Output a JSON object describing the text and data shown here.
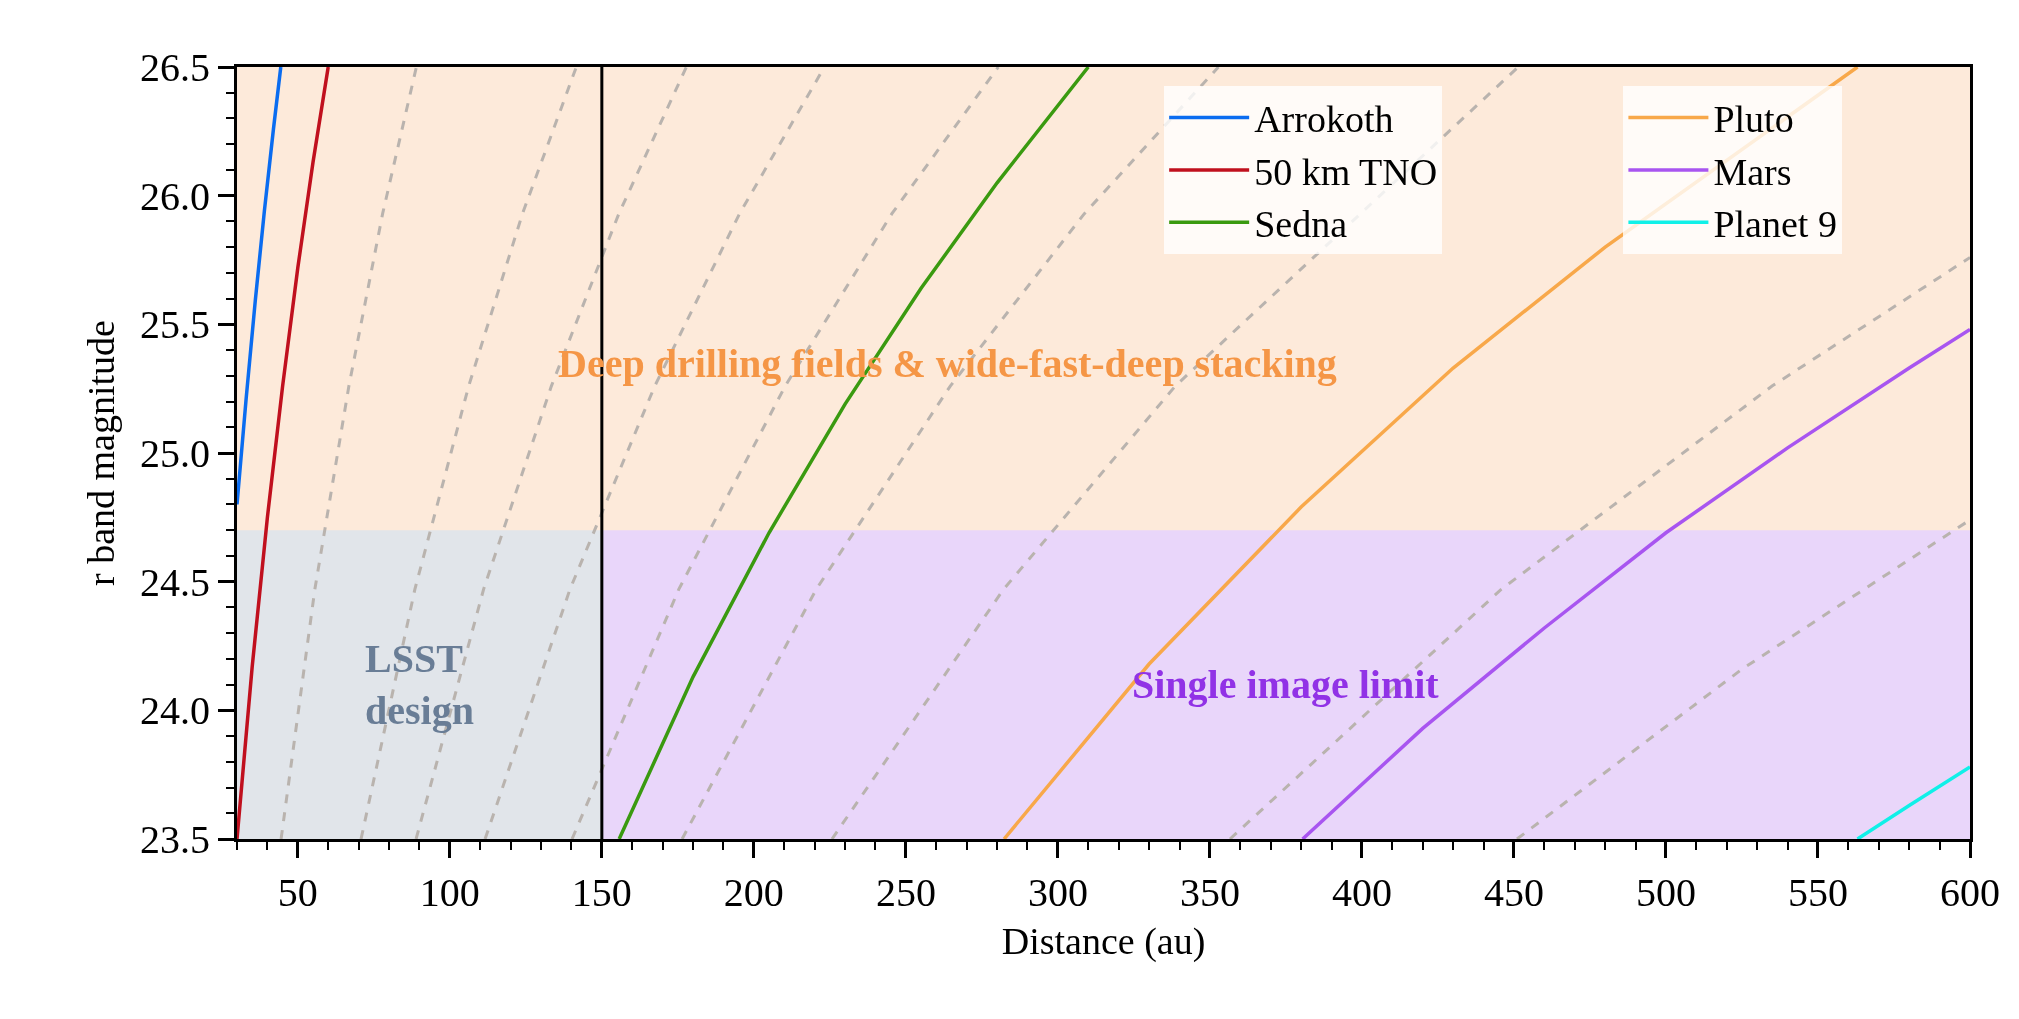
{
  "chart_data": {
    "type": "line",
    "xlabel": "Distance (au)",
    "ylabel": "r band magnitude",
    "xlim": [
      30,
      600
    ],
    "xticks": [
      50,
      100,
      150,
      200,
      250,
      300,
      350,
      400,
      450,
      500,
      550,
      600
    ],
    "ylim": [
      23.5,
      26.5
    ],
    "yticks": [
      23.5,
      {
        "value": 24,
        "label": "24.0"
      },
      24.5,
      {
        "value": 25,
        "label": "25.0"
      },
      25.5,
      {
        "value": 26,
        "label": "26.0"
      },
      26.5
    ],
    "grid": false,
    "legend": "top right",
    "marker": "none",
    "bands": [
      {
        "axis": "x",
        "from": 30,
        "to": 150,
        "label": "LSST design",
        "color": "#e1e5ea"
      },
      {
        "axis": "x",
        "from": 150,
        "to": 600,
        "label": "Single image limit",
        "color": "#e9d6fa"
      },
      {
        "axis": "y",
        "from": 24.7,
        "to": 26.5,
        "label": "Deep drilling fields & wide-fast-deep stacking",
        "color": "#fdeada"
      }
    ],
    "ref_lines": [
      {
        "axis": "x",
        "value": 150,
        "color": "#000000"
      }
    ],
    "series": [
      {
        "color": "#b9b3ae",
        "line_style": "dashed",
        "x": [
          44.5,
          55.6,
          66.8,
          77.9,
          89
        ],
        "values": [
          23.5,
          24.47,
          25.26,
          25.93,
          26.5
        ]
      },
      {
        "color": "#b9b3ae",
        "line_style": "dashed",
        "x": [
          70.8,
          88.5,
          106.2,
          123.9,
          141.6
        ],
        "values": [
          23.5,
          24.47,
          25.26,
          25.93,
          26.5
        ]
      },
      {
        "color": "#b9b3ae",
        "line_style": "dashed",
        "x": [
          88.9,
          111.1,
          133.4,
          155.6,
          177.8
        ],
        "values": [
          23.5,
          24.47,
          25.26,
          25.93,
          26.5
        ]
      },
      {
        "color": "#b9b3ae",
        "line_style": "dashed",
        "x": [
          111.6,
          139.5,
          167.4,
          195.3,
          223.2
        ],
        "values": [
          23.5,
          24.47,
          25.26,
          25.93,
          26.5
        ]
      },
      {
        "color": "#b9b3ae",
        "line_style": "dashed",
        "x": [
          140.2,
          175.3,
          210.3,
          245.4,
          280.4
        ],
        "values": [
          23.5,
          24.47,
          25.26,
          25.93,
          26.5
        ]
      },
      {
        "color": "#b9b3ae",
        "line_style": "dashed",
        "x": [
          176.4,
          220.5,
          264.6,
          308.7,
          352.8
        ],
        "values": [
          23.5,
          24.47,
          25.26,
          25.93,
          26.5
        ]
      },
      {
        "color": "#b9b3ae",
        "line_style": "dashed",
        "x": [
          225.7,
          282.1,
          338.6,
          451.4
        ],
        "values": [
          23.5,
          24.47,
          25.26,
          26.5
        ]
      },
      {
        "color": "#b9b3ae",
        "line_style": "dashed",
        "x": [
          356.6,
          445.8,
          534.9,
          600
        ],
        "values": [
          23.5,
          24.47,
          25.26,
          25.76
        ]
      },
      {
        "color": "#b9b3ae",
        "line_style": "dashed",
        "x": [
          451,
          525,
          600
        ],
        "values": [
          23.5,
          24.16,
          24.74
        ]
      },
      {
        "name": "Arrokoth",
        "color": "#0a6cf0",
        "x": [
          30,
          33,
          36,
          39,
          42,
          44.4
        ],
        "values": [
          24.8,
          25.21,
          25.59,
          25.94,
          26.26,
          26.5
        ]
      },
      {
        "name": "50 km TNO",
        "color": "#c0101e",
        "x": [
          30,
          35,
          40,
          45,
          50,
          55,
          60
        ],
        "values": [
          23.5,
          24.17,
          24.75,
          25.26,
          25.72,
          26.13,
          26.5
        ]
      },
      {
        "name": "Sedna",
        "color": "#3a9a10",
        "x": [
          155.7,
          180,
          205,
          230,
          255,
          280,
          310
        ],
        "values": [
          23.5,
          24.13,
          24.69,
          25.19,
          25.64,
          26.05,
          26.5
        ]
      },
      {
        "name": "Pluto",
        "color": "#f8a84a",
        "x": [
          282.3,
          330,
          380,
          430,
          480,
          563
        ],
        "values": [
          23.5,
          24.18,
          24.79,
          25.33,
          25.8,
          26.5
        ]
      },
      {
        "name": "Mars",
        "color": "#a855f0",
        "x": [
          380.5,
          420,
          460,
          500,
          540,
          580,
          600
        ],
        "values": [
          23.5,
          23.93,
          24.32,
          24.69,
          25.02,
          25.33,
          25.48
        ]
      },
      {
        "name": "Planet 9",
        "color": "#10f0e8",
        "x": [
          563,
          580,
          600
        ],
        "values": [
          23.5,
          23.63,
          23.78
        ]
      }
    ]
  }
}
